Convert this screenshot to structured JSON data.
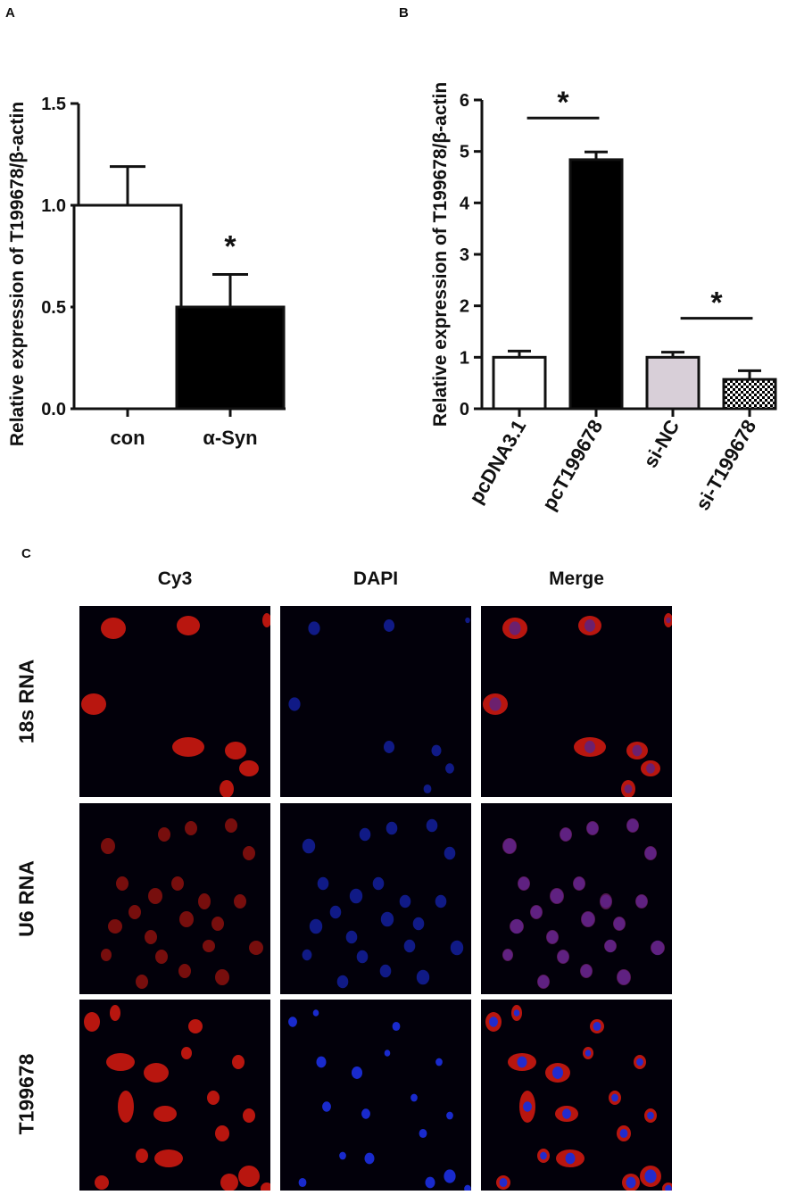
{
  "panels": {
    "a": {
      "letter": "A"
    },
    "b": {
      "letter": "B"
    },
    "c": {
      "letter": "C"
    }
  },
  "chart_data": [
    {
      "type": "bar",
      "panel": "A",
      "categories": [
        "con",
        "α-Syn"
      ],
      "series": [
        {
          "values": [
            1.0,
            0.5
          ],
          "errors": [
            0.19,
            0.16
          ]
        }
      ],
      "bar_fills": [
        "#ffffff",
        "#000000"
      ],
      "ylabel": "Relative expression of T199678/β-actin",
      "ylim": [
        0,
        1.5
      ],
      "yticks": [
        "0.0",
        "0.5",
        "1.0",
        "1.5"
      ],
      "significance": [
        {
          "category": "α-Syn",
          "mark": "*"
        }
      ]
    },
    {
      "type": "bar",
      "panel": "B",
      "categories": [
        "pcDNA3.1",
        "pcT199678",
        "si-NC",
        "si-T199678"
      ],
      "series": [
        {
          "values": [
            1.0,
            4.84,
            1.0,
            0.57
          ],
          "errors": [
            0.12,
            0.15,
            0.1,
            0.17
          ]
        }
      ],
      "bar_fills": [
        "#ffffff",
        "#000000",
        "#d8cfd8",
        "checkered"
      ],
      "ylabel": "Relative expression of T199678/β-actin",
      "ylim": [
        0,
        6
      ],
      "yticks": [
        "0",
        "1",
        "2",
        "3",
        "4",
        "5",
        "6"
      ],
      "significance": [
        {
          "between": [
            "pcDNA3.1",
            "pcT199678"
          ],
          "mark": "*"
        },
        {
          "between": [
            "si-NC",
            "si-T199678"
          ],
          "mark": "*"
        }
      ]
    }
  ],
  "microscopy": {
    "columns": [
      "Cy3",
      "DAPI",
      "Merge"
    ],
    "rows": [
      "18s RNA",
      "U6 RNA",
      "T199678"
    ]
  },
  "colors": {
    "cy3": "#d81a10",
    "dapi": "#1a2cd8",
    "background": "#02000a"
  }
}
